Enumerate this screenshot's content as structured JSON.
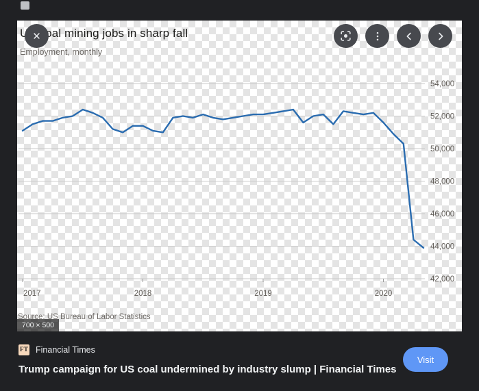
{
  "chart_data": {
    "type": "line",
    "title": "US coal mining jobs in sharp fall",
    "subtitle": "Employment, monthly",
    "source": "Source: US Bureau of Labor Statistics",
    "x_start_year": 2017,
    "points_per_year": 12,
    "x_tick_years": [
      "2017",
      "2018",
      "2019",
      "2020"
    ],
    "y_ticks": [
      42000,
      44000,
      46000,
      48000,
      50000,
      52000,
      54000
    ],
    "y_tick_labels": [
      "42,000",
      "44,000",
      "46,000",
      "48,000",
      "50,000",
      "52,000",
      "54,000"
    ],
    "ylim": [
      42000,
      54000
    ],
    "grid": true,
    "legend": "none",
    "series": [
      {
        "name": "US coal mining employment",
        "color": "#2a6cb0",
        "values": [
          51100,
          51500,
          51700,
          51700,
          51900,
          52000,
          52400,
          52200,
          51900,
          51200,
          51000,
          51400,
          51400,
          51100,
          51000,
          51900,
          52000,
          51900,
          52100,
          51900,
          51800,
          51900,
          52000,
          52100,
          52100,
          52200,
          52300,
          52400,
          51600,
          52000,
          52100,
          51500,
          52300,
          52200,
          52100,
          52200,
          51600,
          50900,
          50300,
          44400,
          43900
        ]
      }
    ]
  },
  "viewer": {
    "dimensions_badge": "700 × 500",
    "close_icon_glyph": "✕"
  },
  "result": {
    "source_name": "Financial Times",
    "source_logo_text": "FT",
    "headline": "Trump campaign for US coal undermined by industry slump | Financial Times",
    "visit_label": "Visit"
  },
  "colors": {
    "background": "#202124",
    "chart_line": "#2a6cb0",
    "visit_button": "#5f97f6",
    "checkerboard_light": "#ffffff",
    "checkerboard_dark": "#e4e4e4"
  }
}
